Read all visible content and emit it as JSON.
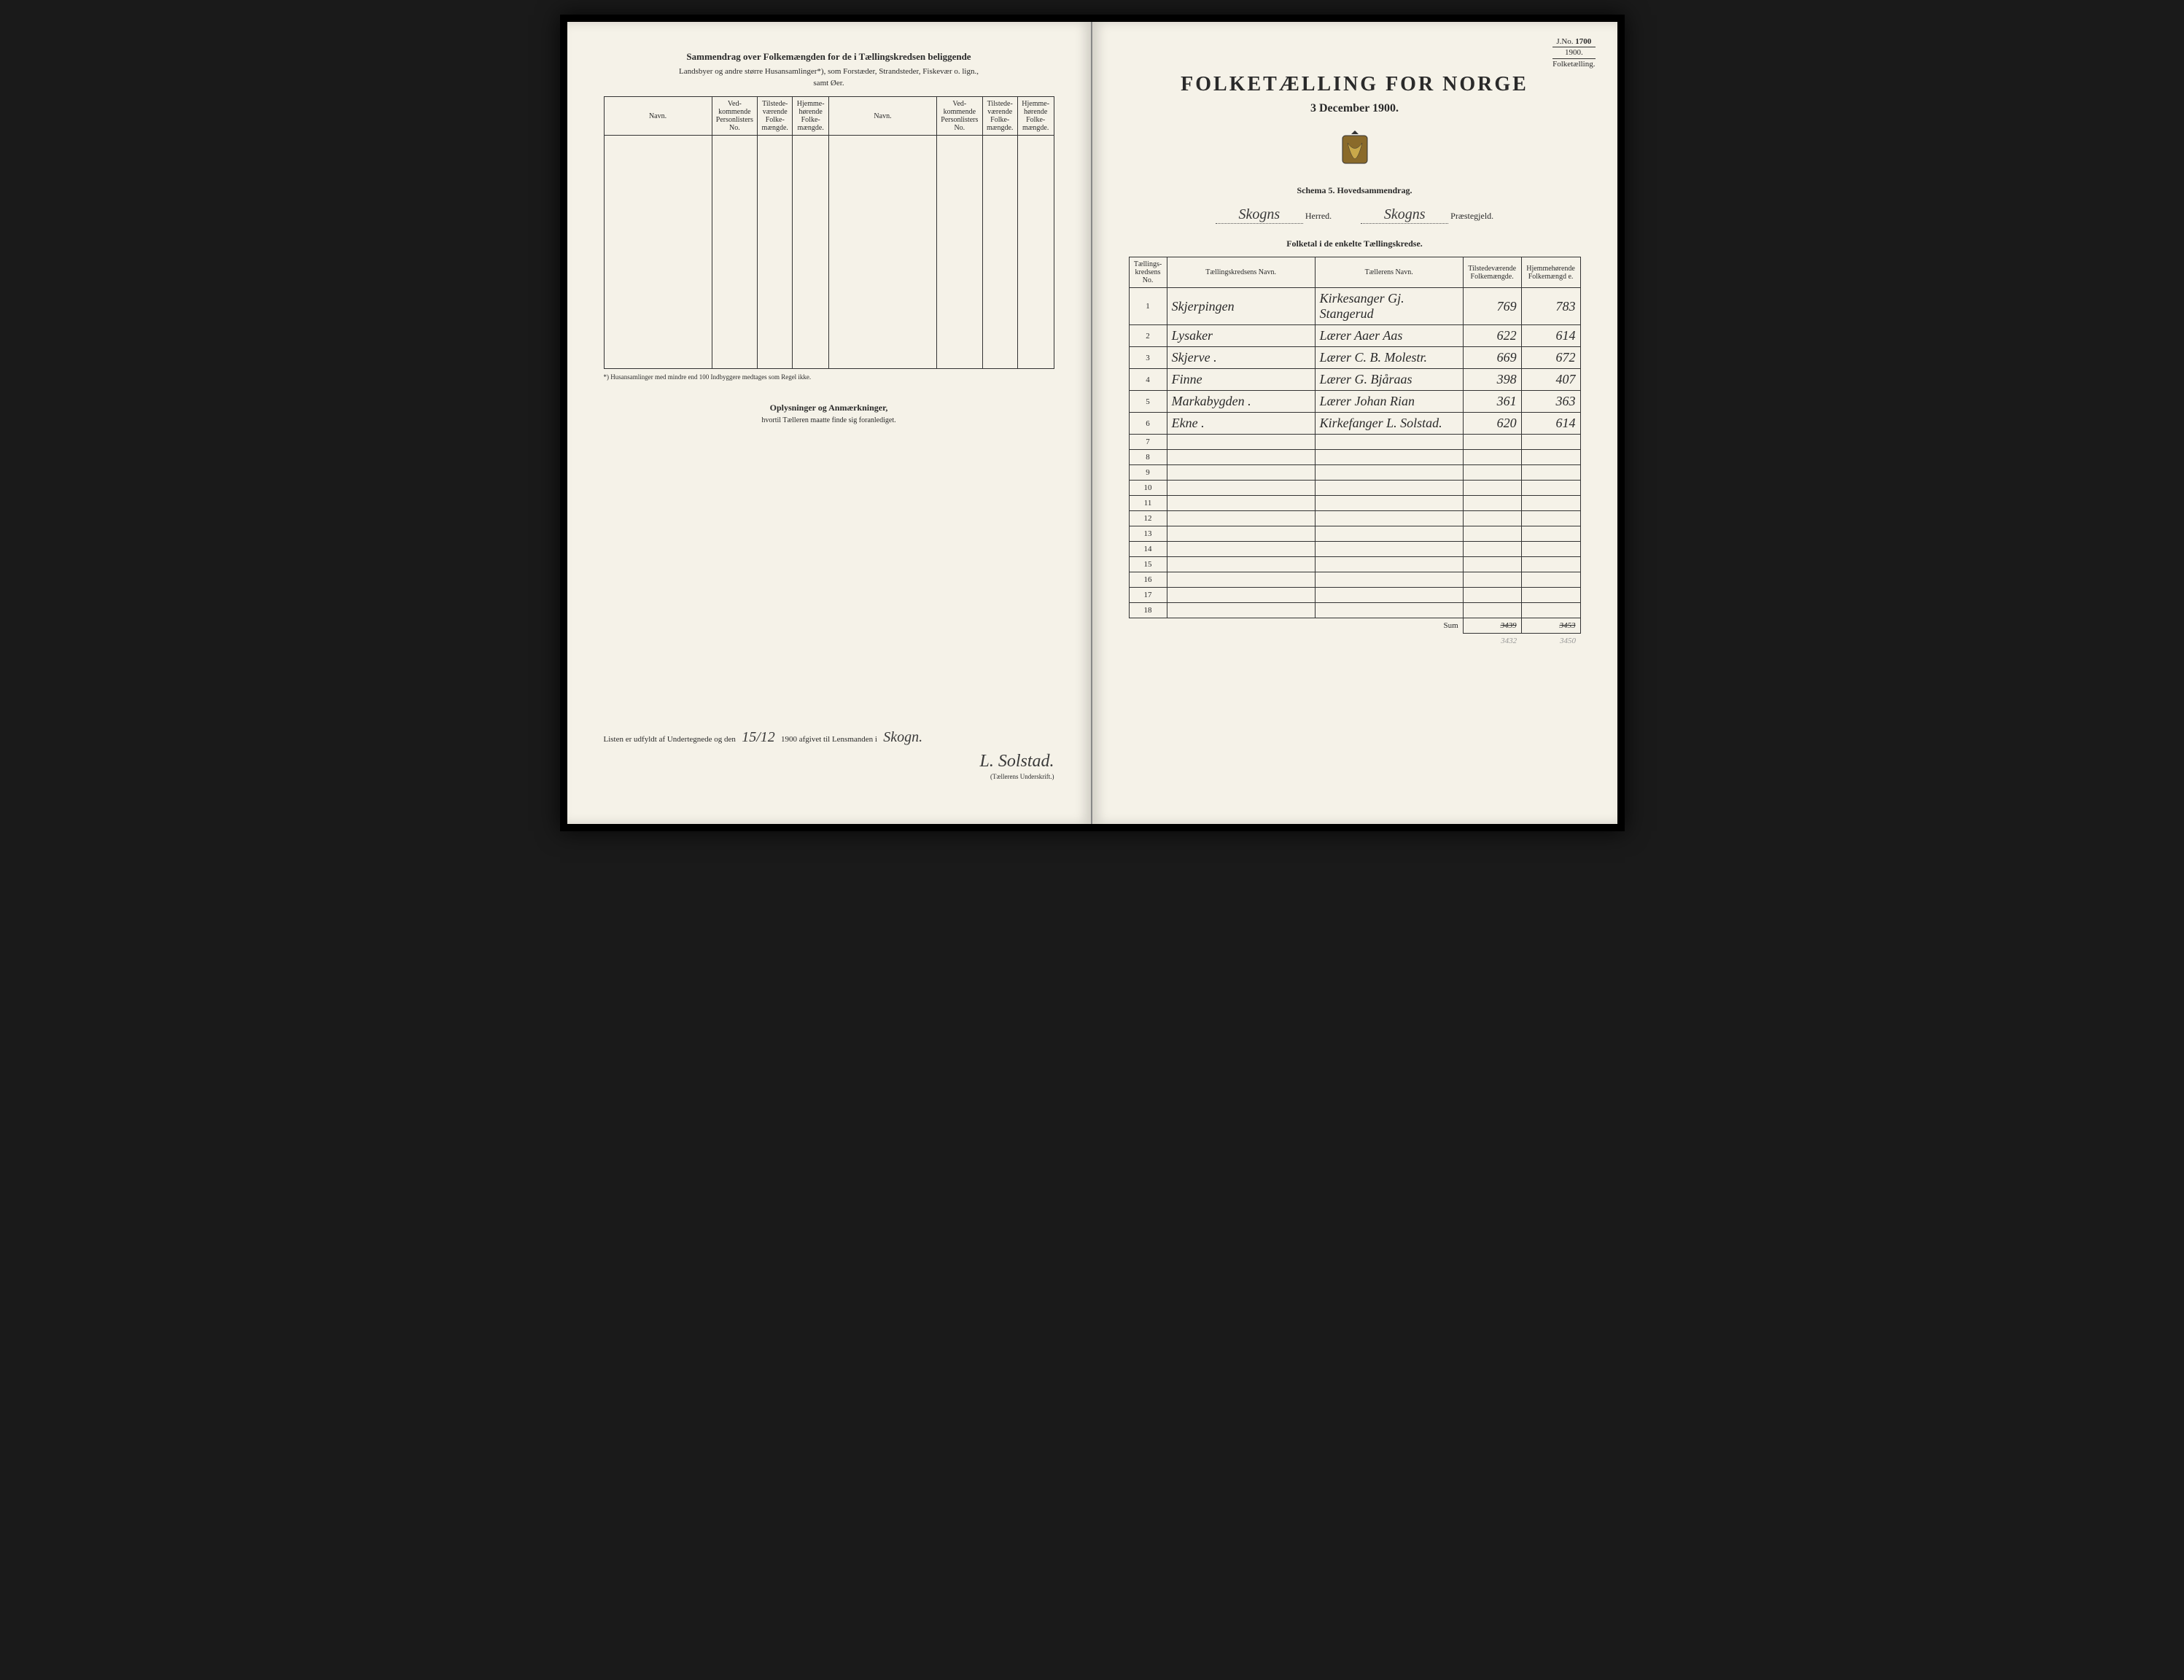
{
  "stamp": {
    "jno_label": "J.No.",
    "jno": "1700",
    "year": "1900.",
    "word": "Folketælling."
  },
  "left": {
    "header": "Sammendrag over Folkemængden for de i Tællingskredsen beliggende",
    "sub1": "Landsbyer og andre større Husansamlinger*), som Forstæder, Strandsteder, Fiskevær o. lign.,",
    "sub2": "samt Øer.",
    "cols": {
      "navn": "Navn.",
      "ved": "Ved-kommende Personlisters No.",
      "tilst": "Tilstede-værende Folke-mængde.",
      "hjem": "Hjemme-hørende Folke-mængde."
    },
    "footnote": "*) Husansamlinger med mindre end 100 Indbyggere medtages som Regel ikke.",
    "oply_head": "Oplysninger og Anmærkninger,",
    "oply_sub": "hvortil Tælleren maatte finde sig foranlediget.",
    "sign_pre": "Listen er udfyldt af Undertegnede og den",
    "sign_date": "15/12",
    "sign_year": "1900",
    "sign_mid": "afgivet til Lensmanden i",
    "sign_place": "Skogn.",
    "sign_name": "L. Solstad.",
    "sign_under": "(Tællerens Underskrift.)"
  },
  "right": {
    "title": "FOLKETÆLLING FOR NORGE",
    "date": "3 December 1900.",
    "schema": "Schema 5.   Hovedsammendrag.",
    "herred_val": "Skogns",
    "herred_lbl": "Herred.",
    "praest_val": "Skogns",
    "praest_lbl": "Præstegjeld.",
    "folketal": "Folketal i de enkelte Tællingskredse.",
    "cols": {
      "no": "Tællings-kredsens No.",
      "navn": "Tællingskredsens Navn.",
      "taller": "Tællerens Navn.",
      "tilst": "Tilstedeværende Folkemængde.",
      "hjem": "Hjemmehørende Folkemængd e."
    },
    "rows": [
      {
        "n": "1",
        "navn": "Skjerpingen",
        "taller": "Kirkesanger Gj. Stangerud",
        "t": "769",
        "h": "783"
      },
      {
        "n": "2",
        "navn": "Lysaker",
        "taller": "Lærer Aaer Aas",
        "t": "622",
        "h": "614"
      },
      {
        "n": "3",
        "navn": "Skjerve .",
        "taller": "Lærer C. B. Molestr.",
        "t": "669",
        "h": "672"
      },
      {
        "n": "4",
        "navn": "Finne",
        "taller": "Lærer G. Bjåraas",
        "t": "398",
        "h": "407"
      },
      {
        "n": "5",
        "navn": "Markabygden .",
        "taller": "Lærer Johan Rian",
        "t": "361",
        "h": "363"
      },
      {
        "n": "6",
        "navn": "Ekne .",
        "taller": "Kirkefanger L. Solstad.",
        "t": "620",
        "h": "614"
      }
    ],
    "blank_rows": [
      "7",
      "8",
      "9",
      "10",
      "11",
      "12",
      "13",
      "14",
      "15",
      "16",
      "17",
      "18"
    ],
    "sum_label": "Sum",
    "sum_t": "3439",
    "sum_h": "3453",
    "sum2_t": "3432",
    "sum2_h": "3450"
  }
}
